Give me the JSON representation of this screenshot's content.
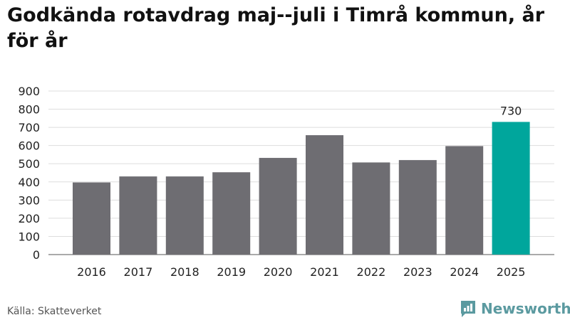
{
  "chart_data": {
    "type": "bar",
    "title": "Godkända rotavdrag maj--juli i Timrå kommun, år för år",
    "categories": [
      "2016",
      "2017",
      "2018",
      "2019",
      "2020",
      "2021",
      "2022",
      "2023",
      "2024",
      "2025"
    ],
    "values": [
      397,
      430,
      430,
      453,
      532,
      657,
      507,
      520,
      597,
      730
    ],
    "labeled_values": [
      {
        "category": "2025",
        "label": "730"
      }
    ],
    "yticks": [
      "0",
      "100",
      "200",
      "300",
      "400",
      "500",
      "600",
      "700",
      "800",
      "900"
    ],
    "ylim": [
      0,
      900
    ],
    "grid": true,
    "colors": {
      "default": "#6e6d72",
      "highlight": "#00a69c",
      "gridline": "#dddddd"
    },
    "highlight_category": "2025"
  },
  "footer": {
    "source": "Källa: Skatteverket",
    "brand": "Newsworthy",
    "brand_icon": "newsworthy-logo-icon"
  }
}
